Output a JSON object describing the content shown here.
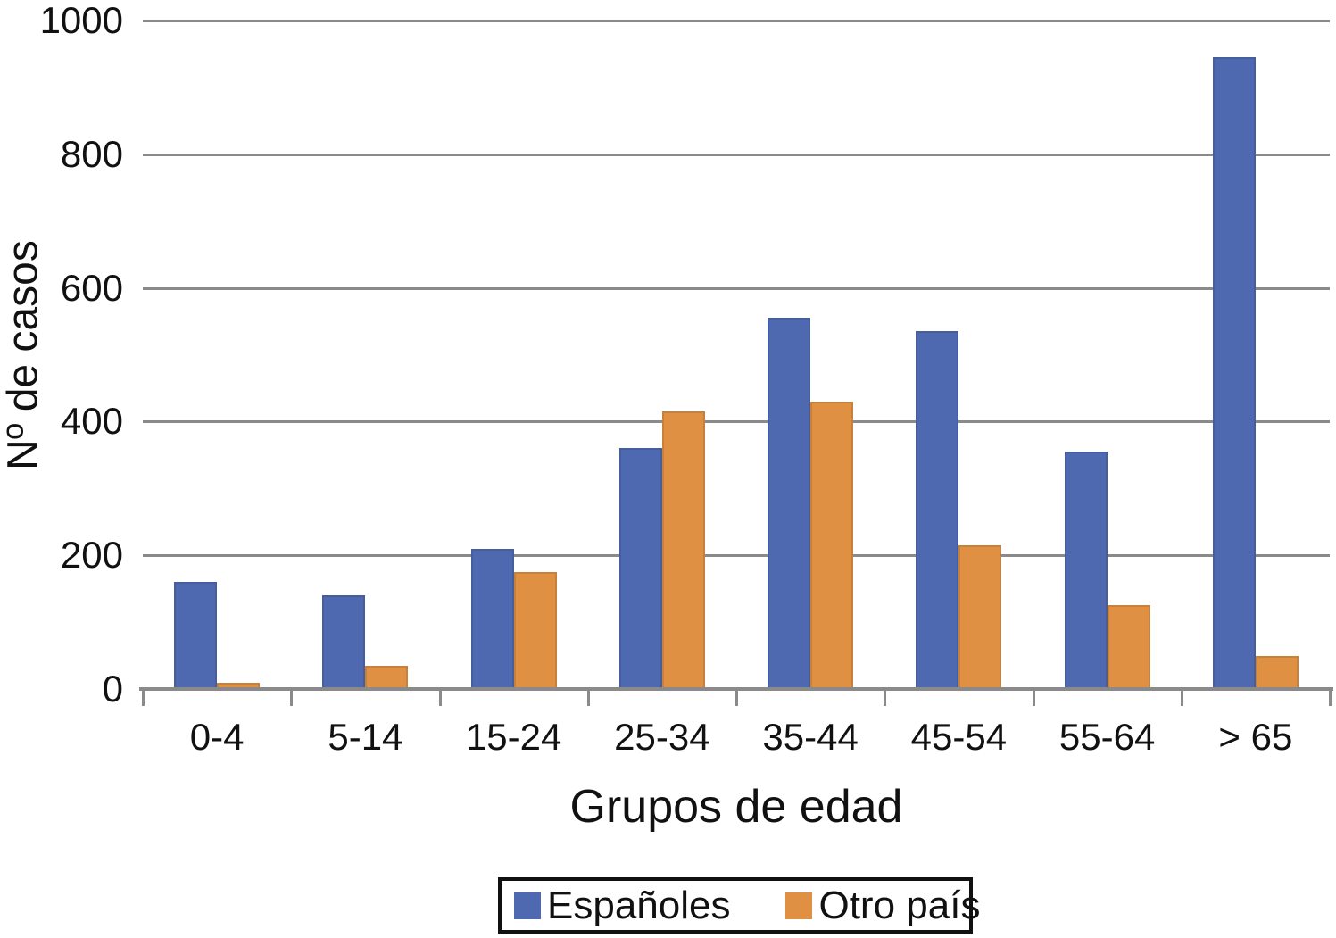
{
  "chart_data": {
    "type": "bar",
    "title": "",
    "categories": [
      "0-4",
      "5-14",
      "15-24",
      "25-34",
      "35-44",
      "45-54",
      "55-64",
      "> 65"
    ],
    "series": [
      {
        "name": "Españoles",
        "color": "#4E69B0",
        "values": [
          160,
          140,
          210,
          360,
          555,
          535,
          355,
          945
        ]
      },
      {
        "name": "Otro país",
        "color": "#DF9042",
        "values": [
          10,
          35,
          175,
          415,
          430,
          215,
          125,
          50
        ]
      }
    ],
    "xlabel": "Grupos de edad",
    "ylabel": "Nº de casos",
    "ylim": [
      0,
      1000
    ],
    "yticks": [
      0,
      200,
      400,
      600,
      800,
      1000
    ],
    "grid": true,
    "gridline_color": "#8a8a8a",
    "legend_position": "bottom"
  }
}
